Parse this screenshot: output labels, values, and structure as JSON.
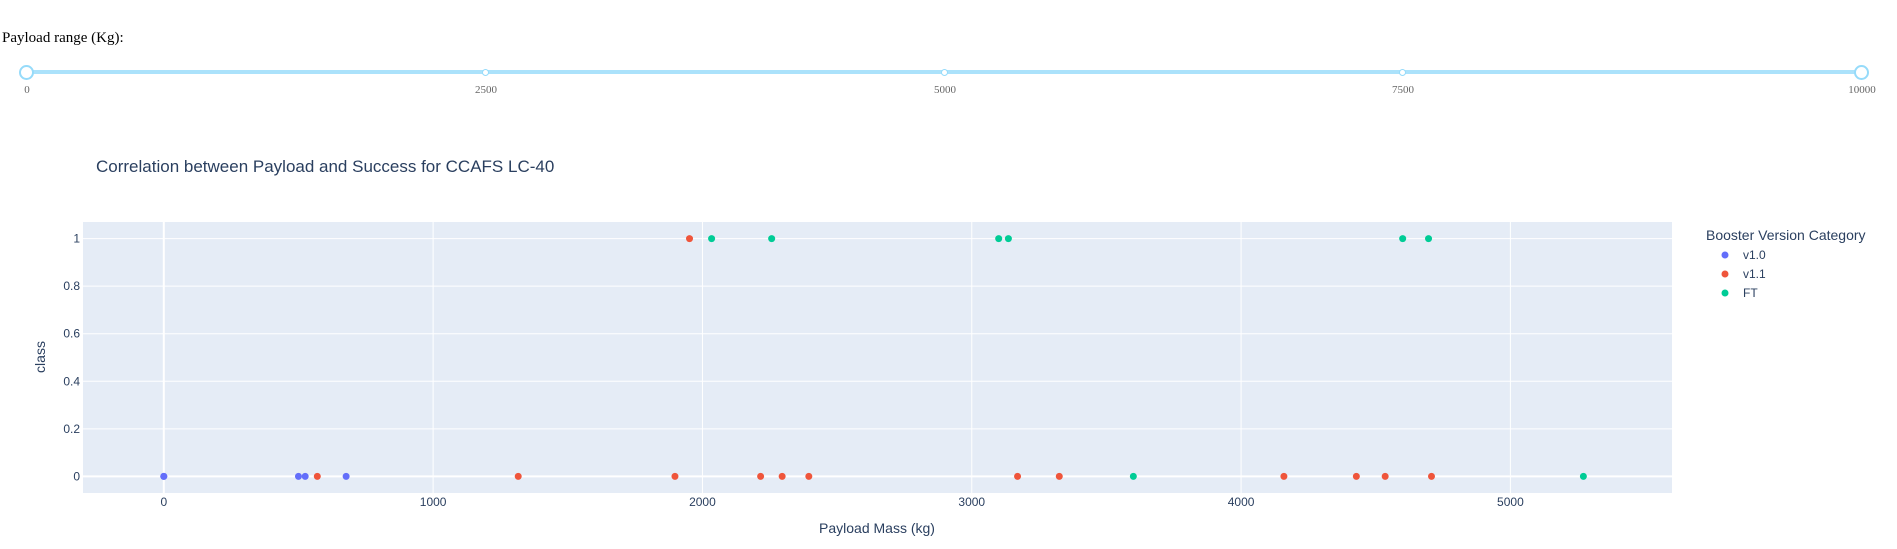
{
  "slider": {
    "label": "Payload range (Kg):",
    "min": 0,
    "max": 10000,
    "value": [
      0,
      10000
    ],
    "marks": [
      "0",
      "2500",
      "5000",
      "7500",
      "10000"
    ]
  },
  "chart_data": {
    "type": "scatter",
    "title": "Correlation between Payload and Success for CCAFS LC-40",
    "xlabel": "Payload Mass (kg)",
    "ylabel": "class",
    "xlim": [
      -300,
      5600
    ],
    "ylim": [
      -0.07,
      1.07
    ],
    "xticks": [
      0,
      1000,
      2000,
      3000,
      4000,
      5000
    ],
    "yticks": [
      0,
      0.2,
      0.4,
      0.6,
      0.8,
      1
    ],
    "ytick_labels": [
      "0",
      "0.2",
      "0.4",
      "0.6",
      "0.8",
      "1"
    ],
    "grid": true,
    "legend_title": "Booster Version Category",
    "legend_position": "top-right",
    "series": [
      {
        "name": "v1.0",
        "color": "#636efa",
        "points": [
          [
            0,
            0
          ],
          [
            0,
            0
          ],
          [
            500,
            0
          ],
          [
            525,
            0
          ],
          [
            677,
            0
          ]
        ]
      },
      {
        "name": "v1.1",
        "color": "#ef553b",
        "points": [
          [
            570,
            0
          ],
          [
            1316,
            0
          ],
          [
            1898,
            0
          ],
          [
            1952,
            1
          ],
          [
            2216,
            0
          ],
          [
            2296,
            0
          ],
          [
            2395,
            0
          ],
          [
            3170,
            0
          ],
          [
            3325,
            0
          ],
          [
            4159,
            0
          ],
          [
            4428,
            0
          ],
          [
            4535,
            0
          ],
          [
            4707,
            0
          ]
        ]
      },
      {
        "name": "FT",
        "color": "#00cc96",
        "points": [
          [
            2034,
            1
          ],
          [
            2257,
            1
          ],
          [
            3100,
            1
          ],
          [
            3136,
            1
          ],
          [
            3600,
            0
          ],
          [
            4600,
            1
          ],
          [
            4696,
            1
          ],
          [
            5271,
            0
          ]
        ]
      }
    ]
  }
}
